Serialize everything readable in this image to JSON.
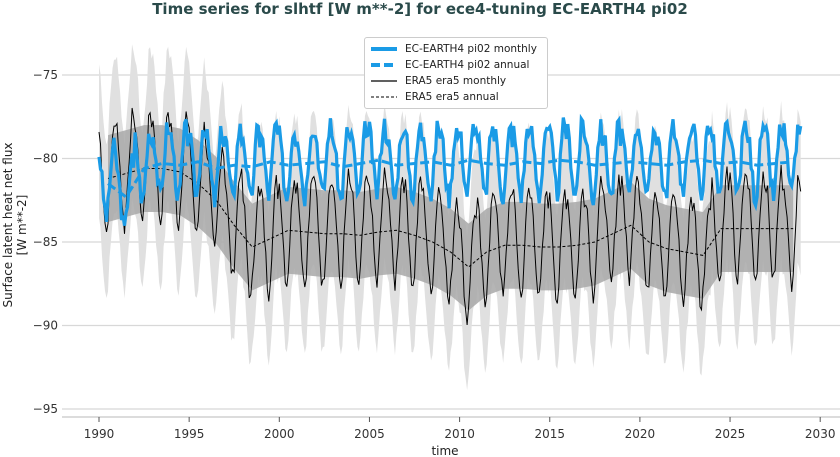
{
  "chart_data": {
    "type": "line",
    "title": "Time series for slhtf [W m**-2] for ece4-tuning EC-EARTH4 pi02",
    "xlabel": "time",
    "ylabel": "Surface latent heat net flux\n[W m**-2]",
    "xlim": [
      1988,
      2031
    ],
    "ylim": [
      -95.5,
      -72
    ],
    "xticks": [
      "1990",
      "1995",
      "2000",
      "2005",
      "2010",
      "2015",
      "2020",
      "2025",
      "2030"
    ],
    "yticks": [
      "-75",
      "-80",
      "-85",
      "-90",
      "-95"
    ],
    "grid": "horizontal",
    "legend_position": "top-center",
    "colors": {
      "model": "#1a9be6",
      "obs": "#000000",
      "band_dark": "#a8a8a8",
      "band_light": "#e0e0e0"
    },
    "years": [
      1990,
      1991,
      1992,
      1993,
      1994,
      1995,
      1996,
      1997,
      1998,
      1999,
      2000,
      2001,
      2002,
      2003,
      2004,
      2005,
      2006,
      2007,
      2008,
      2009,
      2010,
      2011,
      2012,
      2013,
      2014,
      2015,
      2016,
      2017,
      2018,
      2019,
      2020,
      2021,
      2022,
      2023,
      2024,
      2025,
      2026,
      2027,
      2028
    ],
    "monthly_seasonal_cycle": {
      "model": [
        1.8,
        1.2,
        0.2,
        -0.8,
        -1.6,
        -2.0,
        -1.4,
        -0.2,
        1.0,
        2.0,
        2.2,
        1.6
      ],
      "obs": [
        2.8,
        2.0,
        0.4,
        -1.2,
        -2.6,
        -3.2,
        -2.2,
        -0.6,
        1.0,
        2.6,
        3.4,
        2.8
      ]
    },
    "series": [
      {
        "name": "EC-EARTH4 pi02 monthly",
        "style": "solid",
        "annual": [
          -81.5,
          -82.3,
          -80.6,
          -80.3,
          -80.4,
          -80.2,
          -80.6,
          -80.4,
          -80.5,
          -80.2,
          -80.4,
          -80.3,
          -80.2,
          -80.5,
          -80.3,
          -80.1,
          -80.4,
          -80.3,
          -80.2,
          -80.4,
          -80.1,
          -80.3,
          -80.4,
          -80.2,
          -80.3,
          -80.1,
          -80.2,
          -80.4,
          -80.3,
          -80.2,
          -80.3,
          -80.4,
          -80.2,
          -80.1,
          -80.3,
          -80.2,
          -80.4,
          -80.3,
          -80.2
        ]
      },
      {
        "name": "EC-EARTH4 pi02 annual",
        "style": "dashed"
      },
      {
        "name": "ERA5 era5 monthly",
        "style": "solid",
        "annual": [
          -81.2,
          -80.9,
          -80.6,
          -80.6,
          -80.8,
          -81.5,
          -82.5,
          -84.0,
          -85.3,
          -84.8,
          -84.3,
          -84.4,
          -84.5,
          -84.5,
          -84.6,
          -84.4,
          -84.3,
          -84.6,
          -85.0,
          -85.6,
          -86.5,
          -85.6,
          -85.2,
          -85.2,
          -85.3,
          -85.3,
          -85.2,
          -85.0,
          -84.5,
          -84.0,
          -85.0,
          -85.4,
          -85.6,
          -85.8,
          -84.2,
          -84.2,
          -84.2,
          -84.2,
          -84.2
        ],
        "band_inner": 2.6,
        "band_outer": 4.6
      },
      {
        "name": "ERA5 era5 annual",
        "style": "dashed"
      }
    ]
  }
}
